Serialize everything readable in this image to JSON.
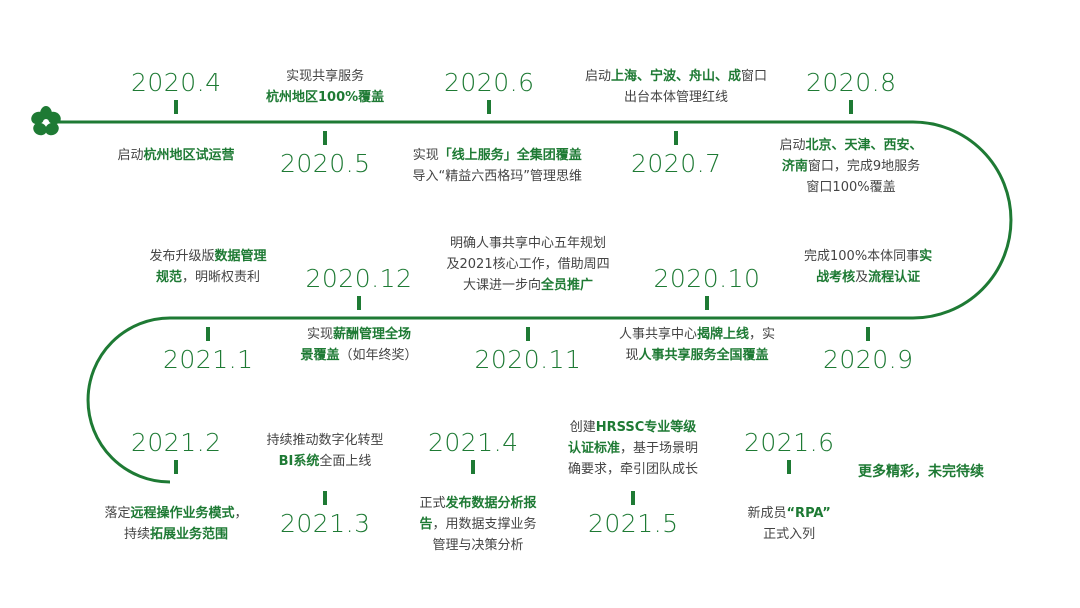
{
  "colors": {
    "accent": "#1e7a34",
    "text": "#444444"
  },
  "icons": {
    "logo": "clover-icon"
  },
  "milestones": [
    {
      "date": "2020.4",
      "lines": [
        [
          [
            "启动",
            false
          ],
          [
            "杭州地区试运营",
            true
          ]
        ]
      ]
    },
    {
      "date": "2020.5",
      "lines": [
        [
          [
            "实现共享服务",
            false
          ]
        ],
        [
          [
            "杭州地区100%覆盖",
            true
          ]
        ]
      ]
    },
    {
      "date": "2020.6",
      "lines": [
        [
          [
            "实现",
            false
          ],
          [
            "「线上服务」全集团覆盖",
            true
          ]
        ],
        [
          [
            "导入“精益六西格玛”管理思维",
            false
          ]
        ]
      ]
    },
    {
      "date": "2020.7",
      "lines": [
        [
          [
            "启动",
            false
          ],
          [
            "上海、宁波、舟山、成",
            true
          ],
          [
            "窗口",
            false
          ]
        ],
        [
          [
            "出台本体管理红线",
            false
          ]
        ]
      ]
    },
    {
      "date": "2020.8",
      "lines": [
        [
          [
            "启动",
            false
          ],
          [
            "北京、天津、西安、",
            true
          ]
        ],
        [
          [
            "济南",
            true
          ],
          [
            "窗口，完成9地服务",
            false
          ]
        ],
        [
          [
            "窗口100%覆盖",
            false
          ]
        ]
      ]
    },
    {
      "date": "2020.9",
      "lines": [
        [
          [
            "完成100%本体同事",
            false
          ],
          [
            "实",
            true
          ]
        ],
        [
          [
            "战考核",
            true
          ],
          [
            "及",
            false
          ],
          [
            "流程认证",
            true
          ]
        ]
      ]
    },
    {
      "date": "2020.10",
      "lines": [
        [
          [
            "人事共享中心",
            false
          ],
          [
            "揭牌上线",
            true
          ],
          [
            "，实",
            false
          ]
        ],
        [
          [
            "现",
            false
          ],
          [
            "人事共享服务全国覆盖",
            true
          ]
        ]
      ]
    },
    {
      "date": "2020.11",
      "lines": [
        [
          [
            "明确人事共享中心五年规划",
            false
          ]
        ],
        [
          [
            "及2021核心工作，借助周四",
            false
          ]
        ],
        [
          [
            "大课进一步向",
            false
          ],
          [
            "全员推广",
            true
          ]
        ]
      ]
    },
    {
      "date": "2020.12",
      "lines": [
        [
          [
            "实现",
            false
          ],
          [
            "薪酬管理全场",
            true
          ]
        ],
        [
          [
            "景覆盖",
            true
          ],
          [
            "（如年终奖）",
            false
          ]
        ]
      ]
    },
    {
      "date": "2021.1",
      "lines": [
        [
          [
            "发布升级版",
            false
          ],
          [
            "数据管理",
            true
          ]
        ],
        [
          [
            "规范",
            true
          ],
          [
            "，明晰权责利",
            false
          ]
        ]
      ]
    },
    {
      "date": "2021.2",
      "lines": [
        [
          [
            "落定",
            false
          ],
          [
            "远程操作业务模式",
            true
          ],
          [
            "，",
            false
          ]
        ],
        [
          [
            "持续",
            false
          ],
          [
            "拓展业务范围",
            true
          ]
        ]
      ]
    },
    {
      "date": "2021.3",
      "lines": [
        [
          [
            "持续推动数字化转型",
            false
          ]
        ],
        [
          [
            "BI系统",
            true
          ],
          [
            "全面上线",
            false
          ]
        ]
      ]
    },
    {
      "date": "2021.4",
      "lines": [
        [
          [
            "正式",
            false
          ],
          [
            "发布数据分析报",
            true
          ]
        ],
        [
          [
            "告",
            true
          ],
          [
            "，用数据支撑业务",
            false
          ]
        ],
        [
          [
            "管理与决策分析",
            false
          ]
        ]
      ]
    },
    {
      "date": "2021.5",
      "lines": [
        [
          [
            "创建",
            false
          ],
          [
            "HRSSC专业等级",
            true
          ]
        ],
        [
          [
            "认证标准",
            true
          ],
          [
            "，基于场景明",
            false
          ]
        ],
        [
          [
            "确要求，牵引团队成长",
            false
          ]
        ]
      ]
    },
    {
      "date": "2021.6",
      "lines": [
        [
          [
            "新成员",
            false
          ],
          [
            "“RPA”",
            true
          ]
        ],
        [
          [
            "正式入列",
            false
          ]
        ]
      ]
    }
  ],
  "ending": "更多精彩，未完待续"
}
